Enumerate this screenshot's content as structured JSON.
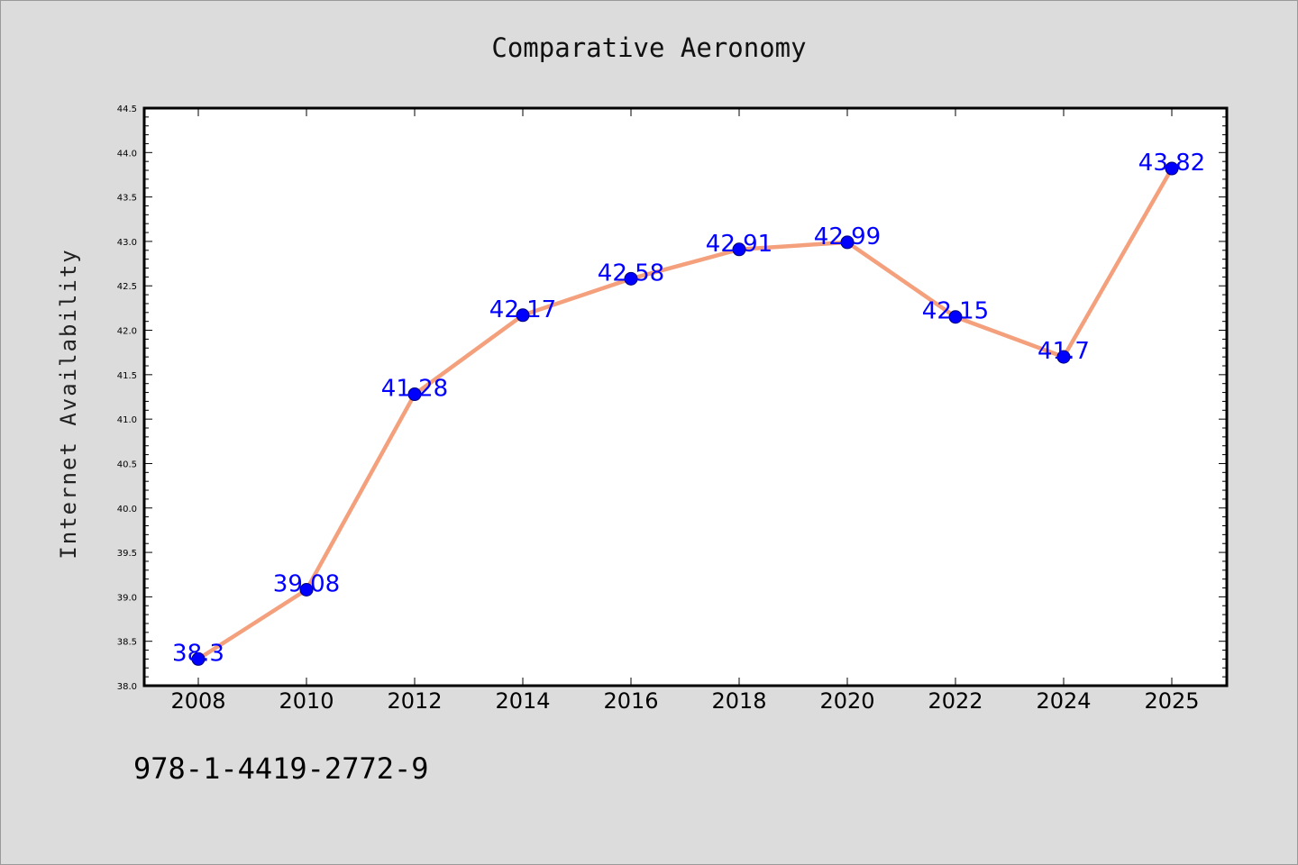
{
  "chart_data": {
    "type": "line",
    "title": "Comparative Aeronomy",
    "xlabel": "",
    "ylabel": "Internet Availability",
    "categories": [
      "2008",
      "2010",
      "2012",
      "2014",
      "2016",
      "2018",
      "2020",
      "2022",
      "2024",
      "2025"
    ],
    "series": [
      {
        "values": [
          38.3,
          39.08,
          41.28,
          42.17,
          42.58,
          42.91,
          42.99,
          42.15,
          41.7,
          43.82
        ],
        "labels": [
          "38.3",
          "39.08",
          "41.28",
          "42.17",
          "42.58",
          "42.91",
          "42.99",
          "42.15",
          "41.7",
          "43.82"
        ],
        "line_color": "#f4a07c",
        "marker_color": "#0000ff"
      }
    ],
    "ylim": [
      38.0,
      44.5
    ],
    "yticks": [
      "38.0",
      "38.5",
      "39.0",
      "39.5",
      "40.0",
      "40.5",
      "41.0",
      "41.5",
      "42.0",
      "42.5",
      "43.0",
      "43.5",
      "44.0",
      "44.5"
    ],
    "grid": false,
    "legend": "none"
  },
  "footer": {
    "code": "978-1-4419-2772-9"
  },
  "colors": {
    "background": "#dcdcdc",
    "plot_background": "#ffffff"
  }
}
